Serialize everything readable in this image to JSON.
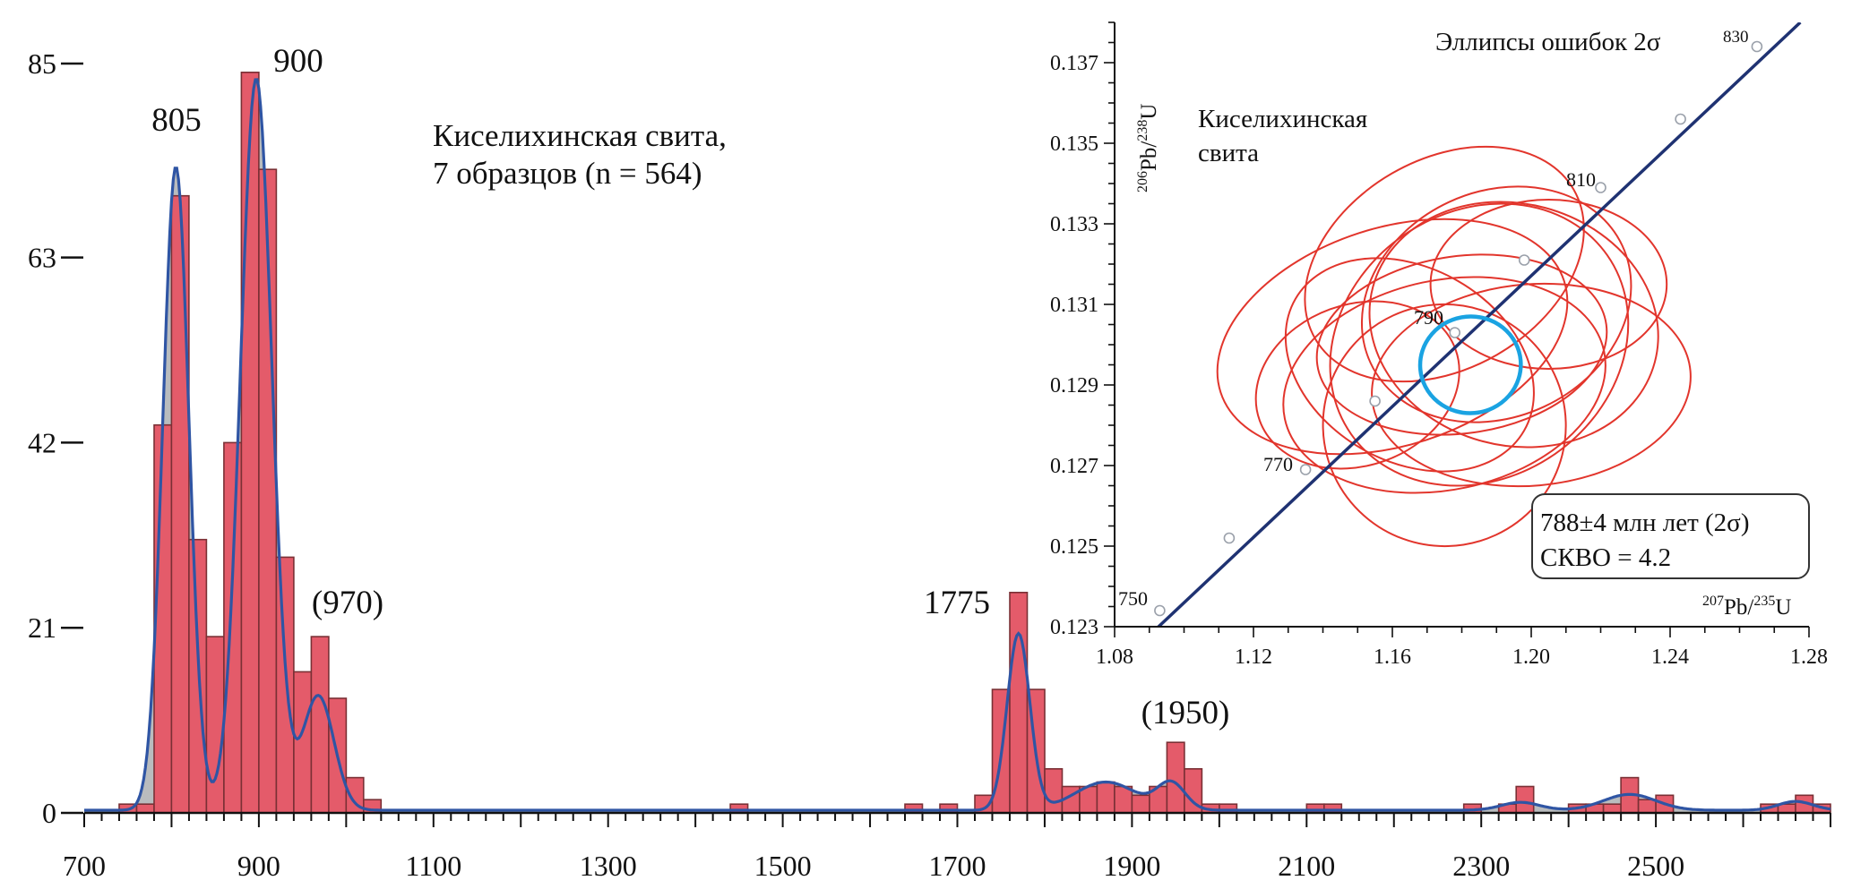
{
  "chart_data": [
    {
      "type": "bar",
      "x_ticks": [
        "700",
        "900",
        "1100",
        "1300",
        "1500",
        "1700",
        "1900",
        "2100",
        "2300",
        "2500"
      ],
      "xlim": [
        700,
        2700
      ],
      "y_ticks": [
        "0",
        "21",
        "42",
        "63",
        "85"
      ],
      "ylim": [
        0,
        85
      ],
      "text_block": [
        "Киселихинская свита,",
        "7 образцов (n = 564)"
      ],
      "peak_labels": [
        "805",
        "900",
        "(970)",
        "1775",
        "(1950)"
      ],
      "peaks_x": [
        805,
        900,
        970,
        1775,
        1950
      ],
      "colors": {
        "bar": "#e45b6a",
        "bar_edge": "#7a3035",
        "kde_fill": "#b9bcbe",
        "kde_line": "#2f55a4",
        "axis": "#111111"
      },
      "bars": [
        {
          "x": 750,
          "v": 1
        },
        {
          "x": 770,
          "v": 1
        },
        {
          "x": 790,
          "v": 44
        },
        {
          "x": 810,
          "v": 70
        },
        {
          "x": 830,
          "v": 31
        },
        {
          "x": 850,
          "v": 20
        },
        {
          "x": 870,
          "v": 42
        },
        {
          "x": 890,
          "v": 84
        },
        {
          "x": 910,
          "v": 73
        },
        {
          "x": 930,
          "v": 29
        },
        {
          "x": 950,
          "v": 16
        },
        {
          "x": 970,
          "v": 20
        },
        {
          "x": 990,
          "v": 13
        },
        {
          "x": 1010,
          "v": 4
        },
        {
          "x": 1030,
          "v": 1.5
        },
        {
          "x": 1450,
          "v": 1
        },
        {
          "x": 1650,
          "v": 1
        },
        {
          "x": 1690,
          "v": 1
        },
        {
          "x": 1730,
          "v": 2
        },
        {
          "x": 1750,
          "v": 14
        },
        {
          "x": 1770,
          "v": 25
        },
        {
          "x": 1790,
          "v": 14
        },
        {
          "x": 1810,
          "v": 5
        },
        {
          "x": 1830,
          "v": 3
        },
        {
          "x": 1850,
          "v": 3
        },
        {
          "x": 1870,
          "v": 3.5
        },
        {
          "x": 1890,
          "v": 3
        },
        {
          "x": 1910,
          "v": 2
        },
        {
          "x": 1930,
          "v": 3
        },
        {
          "x": 1950,
          "v": 8
        },
        {
          "x": 1970,
          "v": 5
        },
        {
          "x": 1990,
          "v": 1
        },
        {
          "x": 2010,
          "v": 1
        },
        {
          "x": 2110,
          "v": 1
        },
        {
          "x": 2130,
          "v": 1
        },
        {
          "x": 2290,
          "v": 1
        },
        {
          "x": 2330,
          "v": 1
        },
        {
          "x": 2350,
          "v": 3
        },
        {
          "x": 2410,
          "v": 1
        },
        {
          "x": 2430,
          "v": 1
        },
        {
          "x": 2450,
          "v": 1
        },
        {
          "x": 2470,
          "v": 4
        },
        {
          "x": 2490,
          "v": 1.5
        },
        {
          "x": 2510,
          "v": 2
        },
        {
          "x": 2630,
          "v": 1
        },
        {
          "x": 2650,
          "v": 1
        },
        {
          "x": 2670,
          "v": 2
        },
        {
          "x": 2690,
          "v": 1
        }
      ],
      "kde": {
        "baseline": 0.3,
        "components": [
          {
            "mu": 805,
            "sigma": 15,
            "a": 73
          },
          {
            "mu": 897,
            "sigma": 18,
            "a": 83
          },
          {
            "mu": 968,
            "sigma": 18,
            "a": 13
          },
          {
            "mu": 1770,
            "sigma": 13,
            "a": 20
          },
          {
            "mu": 1870,
            "sigma": 35,
            "a": 3.2
          },
          {
            "mu": 1945,
            "sigma": 16,
            "a": 3
          },
          {
            "mu": 2345,
            "sigma": 22,
            "a": 0.9
          },
          {
            "mu": 2470,
            "sigma": 30,
            "a": 1.8
          },
          {
            "mu": 2660,
            "sigma": 20,
            "a": 1
          }
        ]
      }
    },
    {
      "type": "scatter",
      "subtype": "concordia",
      "title": "Эллипсы ошибок 2σ",
      "xlabel": {
        "sup": "207",
        "base": "Pb/",
        "sup2": "235",
        "tail": "U"
      },
      "ylabel": {
        "sup": "206",
        "base": "Pb/",
        "sup2": "238",
        "tail": "U"
      },
      "xlim": [
        1.08,
        1.28
      ],
      "ylim": [
        0.123,
        0.138
      ],
      "x_ticks": [
        "1.08",
        "1.12",
        "1.16",
        "1.20",
        "1.24",
        "1.28"
      ],
      "y_ticks": [
        "0.123",
        "0.125",
        "0.127",
        "0.129",
        "0.131",
        "0.133",
        "0.135",
        "0.137"
      ],
      "group_label": [
        "Киселихинская",
        "свита"
      ],
      "result_box": [
        "788±4 млн лет (2σ)",
        "СКВО = 4.2"
      ],
      "concordia_ages": [
        750,
        760,
        770,
        780,
        790,
        800,
        810,
        820,
        830
      ],
      "age_labels": [
        "750",
        "770",
        "790",
        "810",
        "830"
      ],
      "concordia_line": {
        "from": [
          1.0865,
          0.1225
        ],
        "to": [
          1.2775,
          0.138
        ]
      },
      "concordia_points": [
        [
          1.093,
          0.1234
        ],
        [
          1.113,
          0.1252
        ],
        [
          1.135,
          0.1269
        ],
        [
          1.155,
          0.1286
        ],
        [
          1.178,
          0.1303
        ],
        [
          1.198,
          0.1321
        ],
        [
          1.22,
          0.1339
        ],
        [
          1.243,
          0.1356
        ],
        [
          1.265,
          0.1374
        ]
      ],
      "ellipses": [
        {
          "cx": 1.16,
          "cy": 0.1302,
          "rx": 0.052,
          "ry": 0.0027,
          "rot": -18
        },
        {
          "cx": 1.185,
          "cy": 0.13,
          "rx": 0.045,
          "ry": 0.0033,
          "rot": -35
        },
        {
          "cx": 1.195,
          "cy": 0.1305,
          "rx": 0.042,
          "ry": 0.003,
          "rot": 15
        },
        {
          "cx": 1.175,
          "cy": 0.129,
          "rx": 0.047,
          "ry": 0.0026,
          "rot": -12
        },
        {
          "cx": 1.2,
          "cy": 0.129,
          "rx": 0.046,
          "ry": 0.0025,
          "rot": -5
        },
        {
          "cx": 1.175,
          "cy": 0.128,
          "rx": 0.035,
          "ry": 0.003,
          "rot": 20
        },
        {
          "cx": 1.19,
          "cy": 0.131,
          "rx": 0.04,
          "ry": 0.0028,
          "rot": -25
        },
        {
          "cx": 1.165,
          "cy": 0.1295,
          "rx": 0.038,
          "ry": 0.0024,
          "rot": 30
        },
        {
          "cx": 1.205,
          "cy": 0.1315,
          "rx": 0.034,
          "ry": 0.0021,
          "rot": 0
        },
        {
          "cx": 1.18,
          "cy": 0.13,
          "rx": 0.042,
          "ry": 0.0022,
          "rot": -8
        },
        {
          "cx": 1.15,
          "cy": 0.129,
          "rx": 0.03,
          "ry": 0.002,
          "rot": -20
        },
        {
          "cx": 1.175,
          "cy": 0.132,
          "rx": 0.043,
          "ry": 0.0026,
          "rot": -30
        }
      ],
      "mean_ellipse": {
        "cx": 1.1825,
        "cy": 0.1295,
        "rx": 0.0145,
        "ry": 0.0012,
        "rot": -5
      },
      "colors": {
        "ellipse": "#e2352c",
        "mean": "#1aa3e2",
        "concordia": "#1f3272",
        "box_border": "#333333"
      }
    }
  ]
}
